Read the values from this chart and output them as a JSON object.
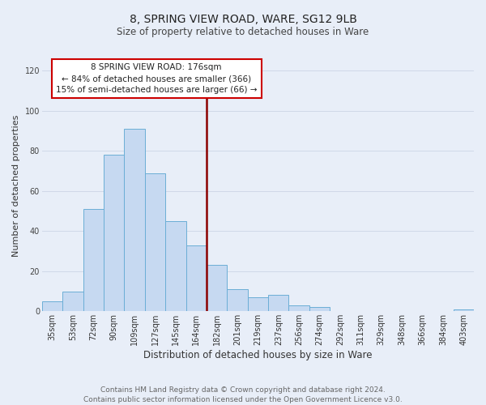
{
  "title": "8, SPRING VIEW ROAD, WARE, SG12 9LB",
  "subtitle": "Size of property relative to detached houses in Ware",
  "xlabel": "Distribution of detached houses by size in Ware",
  "ylabel": "Number of detached properties",
  "bar_labels": [
    "35sqm",
    "53sqm",
    "72sqm",
    "90sqm",
    "109sqm",
    "127sqm",
    "145sqm",
    "164sqm",
    "182sqm",
    "201sqm",
    "219sqm",
    "237sqm",
    "256sqm",
    "274sqm",
    "292sqm",
    "311sqm",
    "329sqm",
    "348sqm",
    "366sqm",
    "384sqm",
    "403sqm"
  ],
  "bar_values": [
    5,
    10,
    51,
    78,
    91,
    69,
    45,
    33,
    23,
    11,
    7,
    8,
    3,
    2,
    0,
    0,
    0,
    0,
    0,
    0,
    1
  ],
  "bar_color": "#c6d9f1",
  "bar_edge_color": "#6baed6",
  "vline_x_idx": 7.5,
  "vline_color": "#8b0000",
  "annotation_box_text": "8 SPRING VIEW ROAD: 176sqm\n← 84% of detached houses are smaller (366)\n15% of semi-detached houses are larger (66) →",
  "annotation_box_edge_color": "#cc0000",
  "annotation_box_facecolor": "#ffffff",
  "ylim": [
    0,
    125
  ],
  "yticks": [
    0,
    20,
    40,
    60,
    80,
    100,
    120
  ],
  "grid_color": "#d0d8e8",
  "background_color": "#e8eef8",
  "footer_text": "Contains HM Land Registry data © Crown copyright and database right 2024.\nContains public sector information licensed under the Open Government Licence v3.0.",
  "title_fontsize": 10,
  "subtitle_fontsize": 8.5,
  "xlabel_fontsize": 8.5,
  "ylabel_fontsize": 8,
  "tick_fontsize": 7,
  "annotation_fontsize": 7.5,
  "footer_fontsize": 6.5
}
